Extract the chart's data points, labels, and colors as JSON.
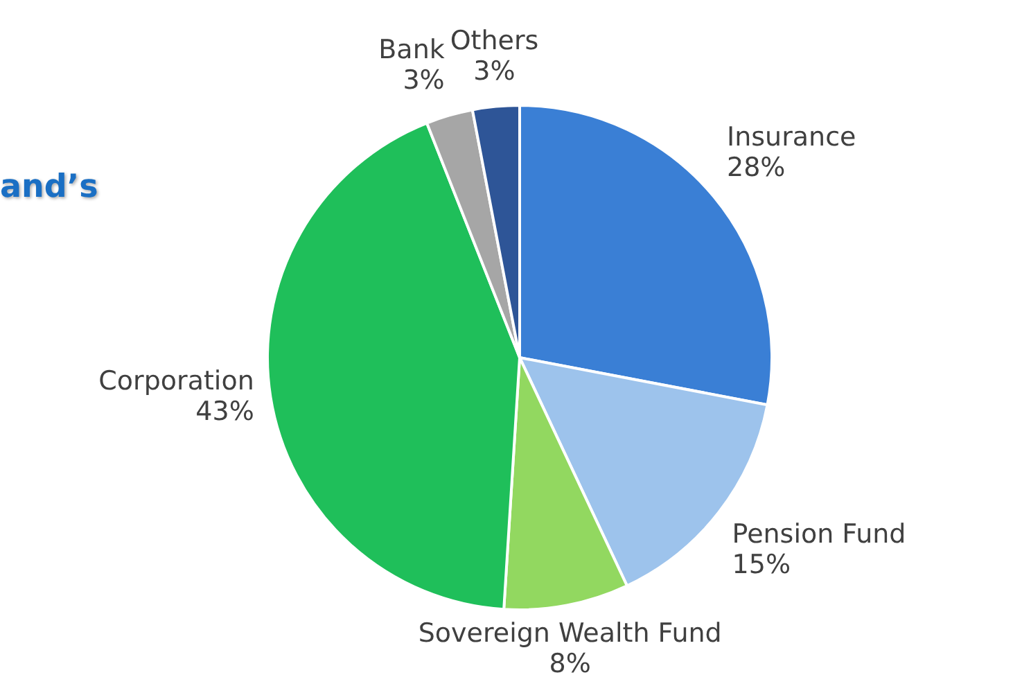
{
  "chart_data": {
    "type": "pie",
    "categories": [
      "Insurance",
      "Pension Fund",
      "Sovereign Wealth Fund",
      "Corporation",
      "Bank",
      "Others"
    ],
    "values": [
      28,
      15,
      8,
      43,
      3,
      3
    ],
    "colors": [
      "#3a7fd5",
      "#9dc3ec",
      "#92d860",
      "#1fbf5a",
      "#a6a6a6",
      "#2e5597"
    ],
    "value_labels": [
      "28%",
      "15%",
      "8%",
      "43%",
      "3%",
      "3%"
    ],
    "legend": false,
    "annotations": [
      "and’s"
    ]
  }
}
